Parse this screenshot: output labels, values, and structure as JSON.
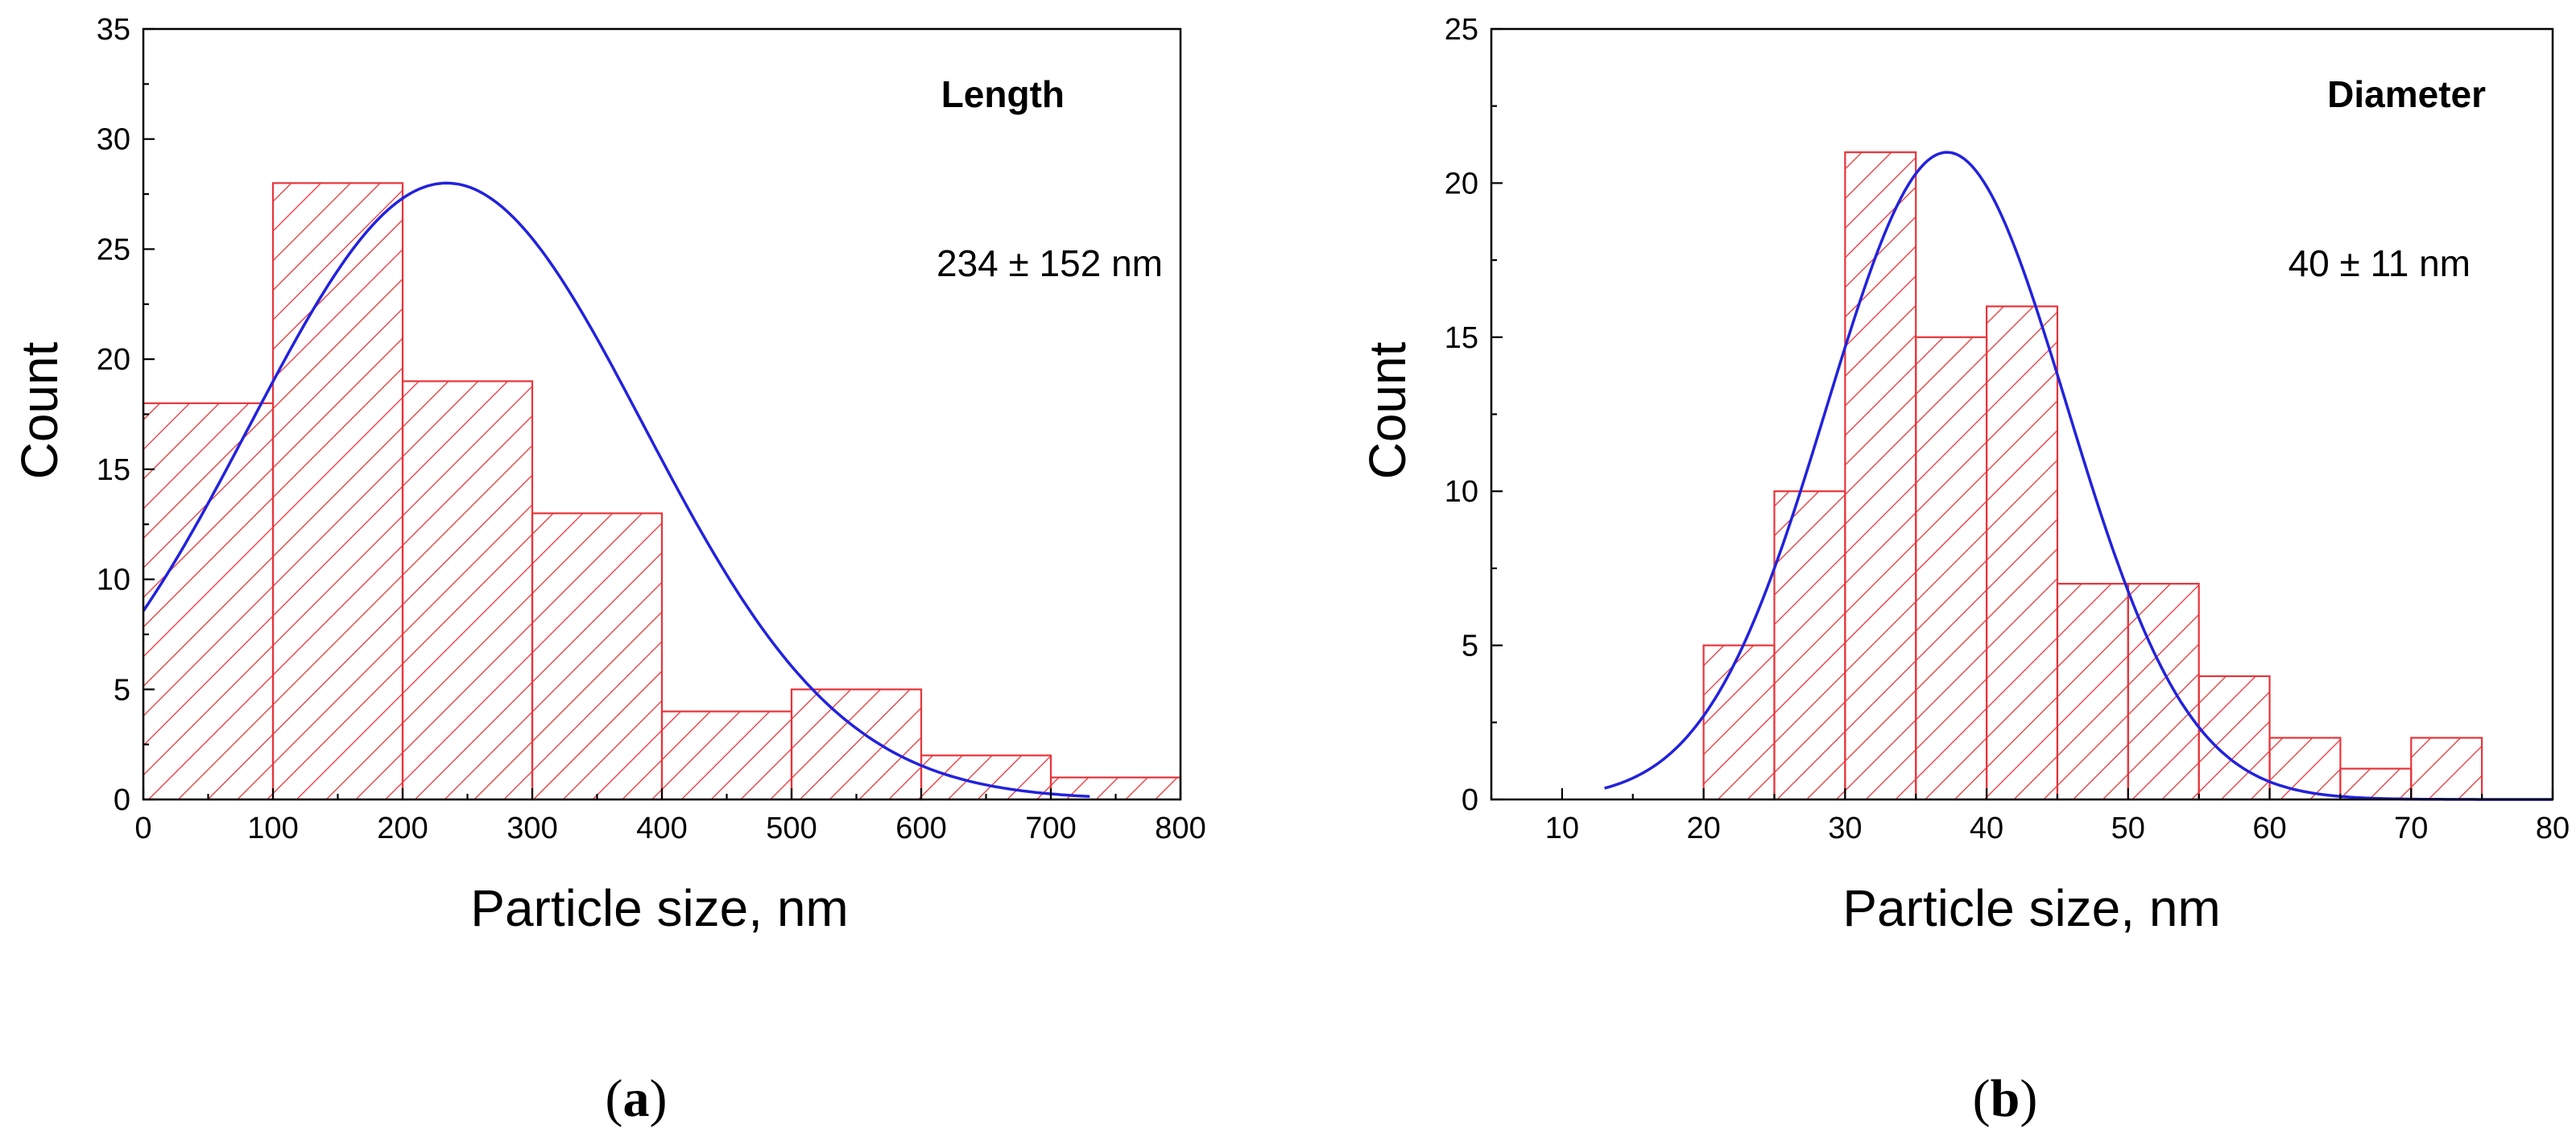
{
  "chart_data": [
    {
      "type": "bar",
      "subtitle": "Length",
      "annotation": "234 ± 152 nm",
      "xlabel": "Particle size, nm",
      "ylabel": "Count",
      "xlim": [
        0,
        800
      ],
      "ylim": [
        0,
        35
      ],
      "xticks": [
        0,
        100,
        200,
        300,
        400,
        500,
        600,
        700,
        800
      ],
      "yticks": [
        0,
        5,
        10,
        15,
        20,
        25,
        30,
        35
      ],
      "bins": [
        {
          "from": 0,
          "to": 100,
          "count": 18
        },
        {
          "from": 100,
          "to": 200,
          "count": 28
        },
        {
          "from": 200,
          "to": 300,
          "count": 19
        },
        {
          "from": 300,
          "to": 400,
          "count": 13
        },
        {
          "from": 400,
          "to": 500,
          "count": 4
        },
        {
          "from": 500,
          "to": 600,
          "count": 5
        },
        {
          "from": 600,
          "to": 700,
          "count": 2
        },
        {
          "from": 700,
          "to": 800,
          "count": 1
        }
      ],
      "fit": {
        "type": "gaussian",
        "mean": 234,
        "sd": 152,
        "peak": 28,
        "x_range": [
          0,
          730
        ]
      },
      "bar_color": "#e8343a",
      "fit_color": "#2222dd",
      "caption_open": "(",
      "caption_letter": "a",
      "caption_close": ")"
    },
    {
      "type": "bar",
      "subtitle": "Diameter",
      "annotation": "40 ± 11 nm",
      "xlabel": "Particle size, nm",
      "ylabel": "Count",
      "xlim": [
        5,
        80
      ],
      "ylim": [
        0,
        25
      ],
      "xticks": [
        10,
        20,
        30,
        40,
        50,
        60,
        70,
        80
      ],
      "yticks": [
        0,
        5,
        10,
        15,
        20,
        25
      ],
      "bins": [
        {
          "from": 20,
          "to": 25,
          "count": 5
        },
        {
          "from": 25,
          "to": 30,
          "count": 10
        },
        {
          "from": 30,
          "to": 35,
          "count": 21
        },
        {
          "from": 35,
          "to": 40,
          "count": 15
        },
        {
          "from": 40,
          "to": 45,
          "count": 16
        },
        {
          "from": 45,
          "to": 50,
          "count": 7
        },
        {
          "from": 50,
          "to": 55,
          "count": 7
        },
        {
          "from": 55,
          "to": 60,
          "count": 4
        },
        {
          "from": 60,
          "to": 65,
          "count": 2
        },
        {
          "from": 65,
          "to": 70,
          "count": 1
        },
        {
          "from": 70,
          "to": 75,
          "count": 2
        }
      ],
      "fit": {
        "type": "gaussian",
        "mean": 37.2,
        "sd": 8.5,
        "peak": 21,
        "x_range": [
          13,
          80
        ]
      },
      "bar_color": "#e8343a",
      "fit_color": "#2222dd",
      "caption_open": "(",
      "caption_letter": "b",
      "caption_close": ")"
    }
  ]
}
